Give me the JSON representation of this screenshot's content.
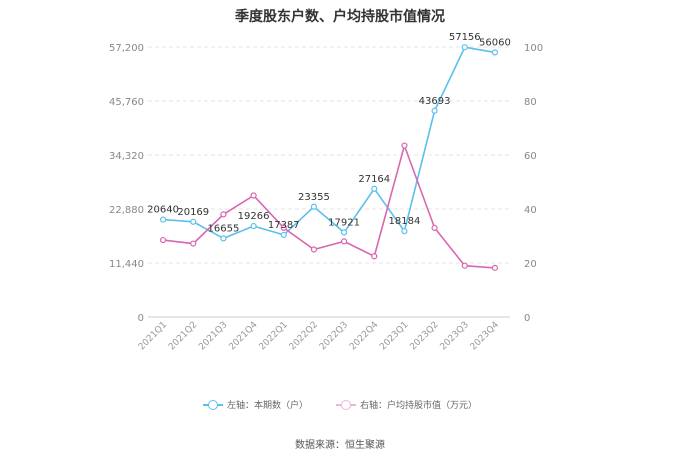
{
  "chart_data": {
    "type": "line",
    "title": "季度股东户数、户均持股市值情况",
    "categories": [
      "2021Q1",
      "2021Q2",
      "2021Q3",
      "2021Q4",
      "2022Q1",
      "2022Q2",
      "2022Q3",
      "2022Q4",
      "2023Q1",
      "2023Q2",
      "2023Q3",
      "2023Q4"
    ],
    "left_axis": {
      "ticks": [
        "0",
        "11,440",
        "22,880",
        "34,320",
        "45,760",
        "57,200"
      ],
      "ylim": [
        0,
        57200
      ]
    },
    "right_axis": {
      "ticks": [
        "0",
        "20",
        "40",
        "60",
        "80",
        "100"
      ],
      "ylim": [
        0,
        100
      ]
    },
    "series": [
      {
        "name": "左轴：本期数（户）",
        "axis": "left",
        "color": "#5bc0eb",
        "values": [
          20640,
          20169,
          16655,
          19266,
          17387,
          23355,
          17921,
          27164,
          18184,
          43693,
          57156,
          56060
        ],
        "labels": [
          "20640",
          "20169",
          "16655",
          "19266",
          "17387",
          "23355",
          "17921",
          "27164",
          "18184",
          "43693",
          "57156",
          "56060"
        ]
      },
      {
        "name": "右轴：户均持股市值（万元）",
        "axis": "right",
        "color": "#d867b0",
        "values": [
          28.5,
          27.2,
          38.0,
          45.0,
          33.0,
          25.0,
          28.0,
          22.5,
          63.5,
          33.0,
          19.0,
          18.2
        ]
      }
    ],
    "grid": true,
    "legend_position": "bottom"
  },
  "source": "数据来源：恒生聚源"
}
